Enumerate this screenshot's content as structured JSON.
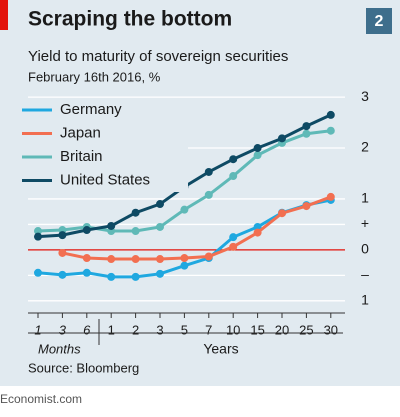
{
  "chart_data": {
    "type": "line",
    "title": "Scraping the bottom",
    "badge": "2",
    "subtitle": "Yield to maturity of sovereign securities",
    "date_note": "February 16th 2016, %",
    "categories": [
      "1",
      "3",
      "6",
      "1",
      "2",
      "3",
      "5",
      "7",
      "10",
      "15",
      "20",
      "25",
      "30"
    ],
    "category_groups": [
      {
        "label": "Months",
        "start": 0,
        "end": 2
      },
      {
        "label": "Years",
        "start": 3,
        "end": 12
      }
    ],
    "series": [
      {
        "name": "Germany",
        "color": "#1fa8e0",
        "values": [
          -0.45,
          -0.49,
          -0.45,
          -0.53,
          -0.53,
          -0.47,
          -0.31,
          -0.16,
          0.25,
          0.45,
          0.73,
          0.88,
          0.98
        ]
      },
      {
        "name": "Japan",
        "color": "#f26f51",
        "values": [
          null,
          -0.06,
          -0.16,
          -0.18,
          -0.18,
          -0.18,
          -0.16,
          -0.13,
          0.06,
          0.34,
          0.72,
          0.86,
          1.04
        ]
      },
      {
        "name": "Britain",
        "color": "#5fb9b7",
        "values": [
          0.37,
          0.39,
          0.45,
          0.37,
          0.37,
          0.45,
          0.79,
          1.08,
          1.45,
          1.86,
          2.1,
          2.28,
          2.34
        ]
      },
      {
        "name": "United States",
        "color": "#0e4a64",
        "values": [
          0.26,
          0.29,
          0.39,
          0.47,
          0.73,
          0.9,
          1.24,
          1.53,
          1.78,
          2.0,
          2.19,
          2.43,
          2.65
        ]
      }
    ],
    "ylim": [
      -1.2,
      3.1
    ],
    "yticks": [
      {
        "value": -1,
        "label": "1"
      },
      {
        "value": -0.5,
        "label": "–"
      },
      0,
      {
        "value": 0.5,
        "label": "+"
      },
      1,
      2,
      3
    ],
    "grid": true,
    "zero_line_color": "#e3120b",
    "legend": "top-left",
    "source": "Source: Bloomberg",
    "footer": "Economist.com"
  }
}
